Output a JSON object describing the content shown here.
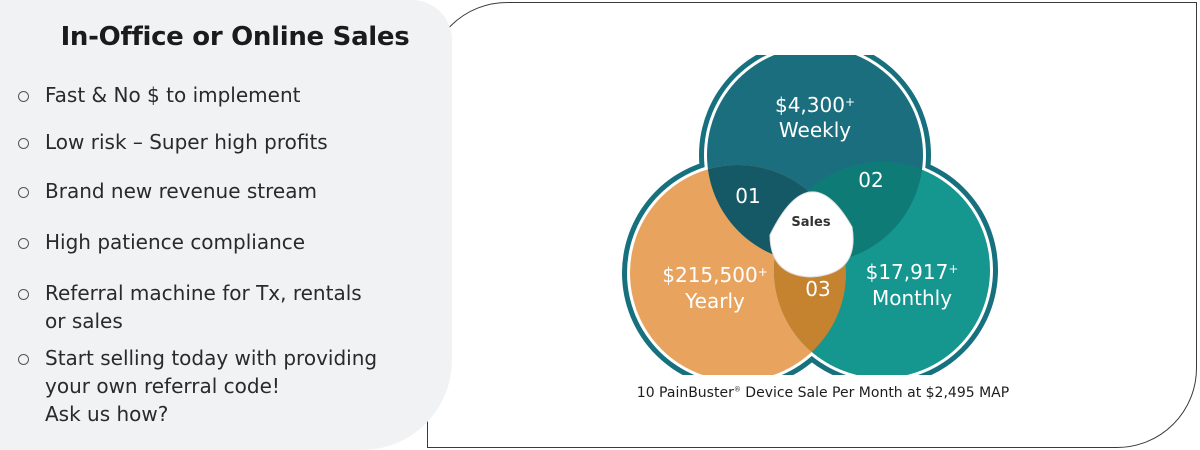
{
  "left_panel": {
    "title": "In-Office or Online Sales",
    "items": [
      {
        "text": "Fast & No $ to implement"
      },
      {
        "text": "Low risk – Super high profits"
      },
      {
        "text": "Brand new revenue stream"
      },
      {
        "text": "High patience compliance"
      },
      {
        "text": "Referral machine for Tx, rentals\nor sales"
      },
      {
        "text": "Start selling today with providing\nyour own referral code!\nAsk us how?"
      }
    ]
  },
  "diagram": {
    "circles": [
      {
        "amount": "$4,300",
        "plus": "+",
        "period": "Weekly",
        "color": "#1b6e7e"
      },
      {
        "amount": "$215,500",
        "plus": "+",
        "period": "Yearly",
        "color": "#e8a45f"
      },
      {
        "amount": "$17,917",
        "plus": "+",
        "period": "Monthly",
        "color": "#15968e"
      }
    ],
    "overlaps": [
      "01",
      "02",
      "03"
    ],
    "center_label": "Sales",
    "ring_color": "#16707e"
  },
  "caption": {
    "prefix": "10 PainBuster",
    "registered": "®",
    "suffix": " Device Sale Per Month at $2,495 MAP"
  }
}
